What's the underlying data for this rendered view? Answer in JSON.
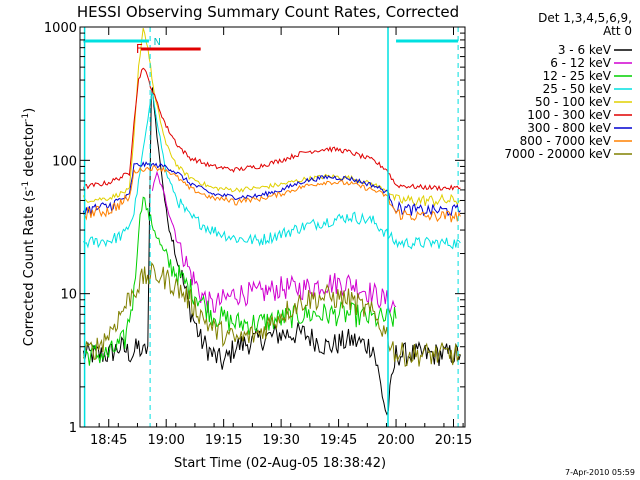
{
  "chart_data": {
    "type": "line",
    "title": "HESSI Observing Summary Count Rates, Corrected",
    "xlabel": "Start Time (02-Aug-05 18:38:42)",
    "ylabel": "Corrected Count Rate (s⁻¹ detector⁻¹)",
    "ylabel_parts": {
      "a": "Corrected Count Rate (s",
      "b": "-1",
      "c": " detector",
      "d": "-1",
      "e": ")"
    },
    "y_scale": "log",
    "ylim": [
      1,
      1000
    ],
    "y_ticks": [
      {
        "value": 1,
        "label": "1"
      },
      {
        "value": 10,
        "label": "10"
      },
      {
        "value": 100,
        "label": "100"
      },
      {
        "value": 1000,
        "label": "1000"
      }
    ],
    "xlim": [
      18.625,
      20.3
    ],
    "x_ticks": [
      {
        "value": 18.75,
        "label": "18:45"
      },
      {
        "value": 19.0,
        "label": "19:00"
      },
      {
        "value": 19.25,
        "label": "19:15"
      },
      {
        "value": 19.5,
        "label": "19:30"
      },
      {
        "value": 19.75,
        "label": "19:45"
      },
      {
        "value": 20.0,
        "label": "20:00"
      },
      {
        "value": 20.25,
        "label": "20:15"
      }
    ],
    "grid": false,
    "legend_title_1": "Det 1,3,4,5,6,9,",
    "legend_title_2": "Att 0",
    "legend_position": "right",
    "footer_date": "7-Apr-2010 05:59",
    "markers": {
      "night_bars": [
        {
          "x0": 18.64,
          "x1": 18.925
        },
        {
          "x0": 20.0,
          "x1": 20.27
        }
      ],
      "saa_lines": [
        18.645,
        19.965
      ],
      "dashed_lines": [
        18.93,
        20.27
      ],
      "n_label": "N",
      "n_x": 18.945,
      "f_label": "F",
      "f_bar": {
        "x0": 18.89,
        "x1": 19.15
      },
      "f_x": 18.883
    },
    "series": [
      {
        "name": "3 - 6 keV",
        "color": "#000000",
        "x": [
          18.64,
          18.75,
          18.8,
          18.85,
          18.88,
          18.9,
          18.92,
          18.935,
          18.94,
          18.96,
          18.98,
          19.0,
          19.05,
          19.1,
          19.15,
          19.2,
          19.25,
          19.3,
          19.4,
          19.5,
          19.6,
          19.7,
          19.8,
          19.9,
          19.96,
          20.0,
          20.1,
          20.2,
          20.28
        ],
        "y": [
          3.5,
          3.5,
          4.0,
          3.5,
          4.0,
          3.5,
          4.0,
          300,
          350,
          150,
          80,
          40,
          18,
          8,
          4.5,
          3.5,
          3.0,
          4.0,
          4.5,
          5.0,
          5.0,
          4.0,
          4.5,
          4.0,
          1.2,
          3.5,
          3.5,
          3.5,
          3.5
        ]
      },
      {
        "name": "6 - 12 keV",
        "color": "#d000d0",
        "x": [
          18.94,
          18.96,
          19.0,
          19.05,
          19.1,
          19.15,
          19.2,
          19.3,
          19.4,
          19.5,
          19.6,
          19.7,
          19.8,
          19.9,
          20.0
        ],
        "y": [
          60,
          80,
          50,
          25,
          15,
          10,
          8,
          10,
          10,
          11,
          11,
          12,
          12,
          10,
          8
        ]
      },
      {
        "name": "12 - 25 keV",
        "color": "#00d000",
        "x": [
          18.64,
          18.75,
          18.82,
          18.86,
          18.88,
          18.9,
          18.92,
          18.95,
          18.98,
          19.0,
          19.05,
          19.1,
          19.15,
          19.2,
          19.3,
          19.4,
          19.5,
          19.6,
          19.7,
          19.8,
          19.9,
          20.0
        ],
        "y": [
          3.5,
          3.5,
          4.5,
          10,
          30,
          55,
          40,
          30,
          22,
          18,
          14,
          11,
          9,
          7,
          6,
          6,
          6.5,
          7,
          7,
          7,
          6.5,
          6.5
        ]
      },
      {
        "name": "25 - 50 keV",
        "color": "#00e0e0",
        "x": [
          18.64,
          18.75,
          18.82,
          18.86,
          18.9,
          18.94,
          18.96,
          19.0,
          19.05,
          19.1,
          19.2,
          19.3,
          19.4,
          19.5,
          19.6,
          19.7,
          19.8,
          19.9,
          19.96,
          20.0,
          20.1,
          20.2,
          20.28
        ],
        "y": [
          24,
          25,
          28,
          40,
          120,
          330,
          200,
          80,
          50,
          38,
          30,
          26,
          25,
          28,
          32,
          35,
          38,
          35,
          28,
          24,
          24,
          24,
          24
        ]
      },
      {
        "name": "50 - 100 keV",
        "color": "#e0d000",
        "x": [
          18.64,
          18.75,
          18.84,
          18.86,
          18.88,
          18.9,
          18.92,
          18.95,
          19.0,
          19.05,
          19.1,
          19.2,
          19.3,
          19.4,
          19.5,
          19.6,
          19.7,
          19.8,
          19.9,
          19.96,
          20.0,
          20.1,
          20.2,
          20.28
        ],
        "y": [
          50,
          52,
          60,
          150,
          500,
          1000,
          700,
          300,
          130,
          90,
          75,
          62,
          60,
          62,
          66,
          72,
          76,
          74,
          66,
          60,
          50,
          50,
          50,
          50
        ]
      },
      {
        "name": "100 - 300 keV",
        "color": "#e00000",
        "x": [
          18.64,
          18.75,
          18.84,
          18.86,
          18.88,
          18.9,
          18.95,
          19.0,
          19.05,
          19.1,
          19.2,
          19.3,
          19.4,
          19.5,
          19.6,
          19.7,
          19.75,
          19.8,
          19.9,
          19.96,
          20.0,
          20.1,
          20.2,
          20.28
        ],
        "y": [
          63,
          68,
          80,
          200,
          400,
          510,
          300,
          180,
          130,
          105,
          90,
          85,
          90,
          100,
          115,
          122,
          120,
          115,
          100,
          85,
          65,
          63,
          62,
          62
        ]
      },
      {
        "name": "300 - 800 keV",
        "color": "#0000d0",
        "x": [
          18.64,
          18.75,
          18.84,
          18.86,
          18.9,
          18.95,
          19.0,
          19.05,
          19.1,
          19.2,
          19.3,
          19.4,
          19.5,
          19.6,
          19.7,
          19.8,
          19.9,
          19.96,
          20.0,
          20.1,
          20.2,
          20.28
        ],
        "y": [
          42,
          45,
          55,
          92,
          93,
          92,
          90,
          80,
          68,
          56,
          53,
          54,
          60,
          70,
          75,
          73,
          65,
          58,
          44,
          42,
          42,
          42
        ]
      },
      {
        "name": "800 - 7000 keV",
        "color": "#ff8000",
        "x": [
          18.64,
          18.75,
          18.84,
          18.86,
          18.9,
          18.95,
          19.0,
          19.05,
          19.1,
          19.2,
          19.3,
          19.4,
          19.5,
          19.6,
          19.7,
          19.8,
          19.9,
          19.96,
          20.0,
          20.1,
          20.2,
          20.28
        ],
        "y": [
          40,
          42,
          52,
          82,
          86,
          88,
          85,
          74,
          62,
          52,
          50,
          51,
          56,
          64,
          69,
          67,
          60,
          54,
          40,
          38,
          38,
          38
        ]
      },
      {
        "name": "7000 - 20000 keV",
        "color": "#808000",
        "x": [
          18.64,
          18.7,
          18.75,
          18.8,
          18.85,
          18.9,
          18.95,
          19.0,
          19.05,
          19.1,
          19.15,
          19.2,
          19.3,
          19.4,
          19.5,
          19.6,
          19.7,
          19.8,
          19.9,
          19.96,
          20.0,
          20.1,
          20.2,
          20.28
        ],
        "y": [
          3.5,
          4.0,
          5.0,
          7.0,
          10,
          13,
          14,
          13,
          11,
          9,
          7,
          5.5,
          4.5,
          5,
          7,
          9,
          9.5,
          9,
          7,
          5,
          3.5,
          3.5,
          3.5,
          3.5
        ]
      }
    ]
  }
}
